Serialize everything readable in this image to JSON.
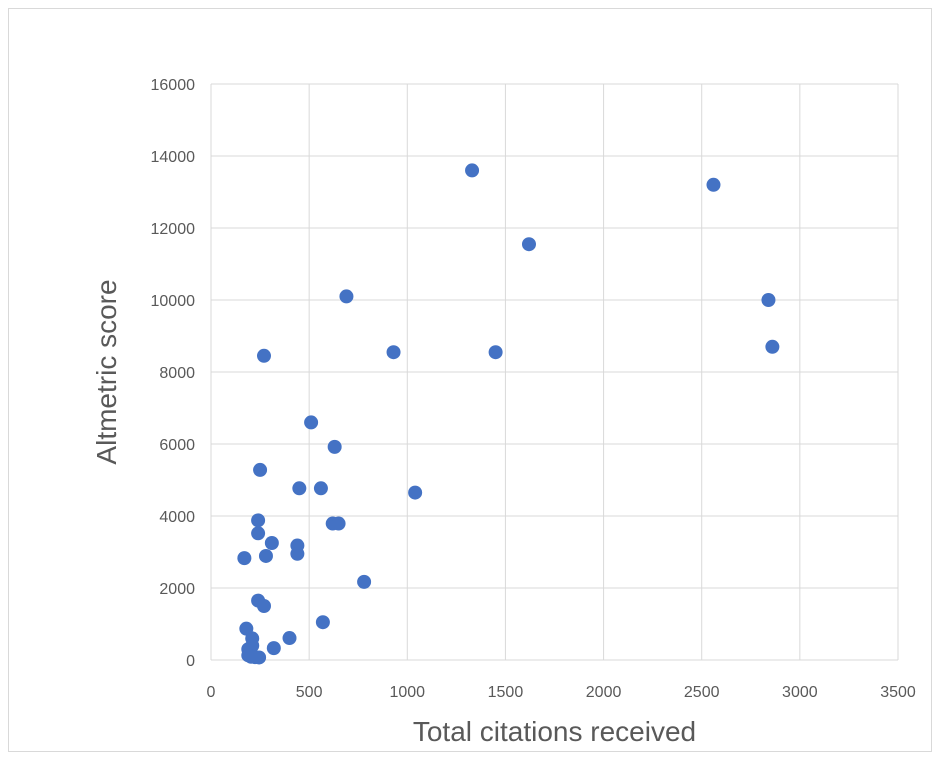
{
  "chart_data": {
    "type": "scatter",
    "title": "",
    "xlabel": "Total citations received",
    "ylabel": "Altmetric score",
    "xlim": [
      0,
      3500
    ],
    "ylim": [
      0,
      16000
    ],
    "xticks": [
      0,
      500,
      1000,
      1500,
      2000,
      2500,
      3000,
      3500
    ],
    "yticks": [
      0,
      2000,
      4000,
      6000,
      8000,
      10000,
      12000,
      14000,
      16000
    ],
    "grid": true,
    "legend": "none",
    "marker_color": "#4472C4",
    "series": [
      {
        "points": [
          {
            "x": 1330,
            "y": 13600
          },
          {
            "x": 2560,
            "y": 13200
          },
          {
            "x": 1620,
            "y": 11550
          },
          {
            "x": 690,
            "y": 10100
          },
          {
            "x": 2840,
            "y": 10000
          },
          {
            "x": 2860,
            "y": 8700
          },
          {
            "x": 930,
            "y": 8550
          },
          {
            "x": 1450,
            "y": 8550
          },
          {
            "x": 270,
            "y": 8450
          },
          {
            "x": 510,
            "y": 6600
          },
          {
            "x": 630,
            "y": 5920
          },
          {
            "x": 250,
            "y": 5280
          },
          {
            "x": 450,
            "y": 4770
          },
          {
            "x": 560,
            "y": 4770
          },
          {
            "x": 1040,
            "y": 4650
          },
          {
            "x": 240,
            "y": 3880
          },
          {
            "x": 620,
            "y": 3790
          },
          {
            "x": 650,
            "y": 3790
          },
          {
            "x": 240,
            "y": 3520
          },
          {
            "x": 310,
            "y": 3250
          },
          {
            "x": 440,
            "y": 3180
          },
          {
            "x": 440,
            "y": 2950
          },
          {
            "x": 280,
            "y": 2890
          },
          {
            "x": 170,
            "y": 2830
          },
          {
            "x": 780,
            "y": 2170
          },
          {
            "x": 240,
            "y": 1650
          },
          {
            "x": 270,
            "y": 1500
          },
          {
            "x": 570,
            "y": 1050
          },
          {
            "x": 180,
            "y": 870
          },
          {
            "x": 400,
            "y": 610
          },
          {
            "x": 210,
            "y": 600
          },
          {
            "x": 210,
            "y": 400
          },
          {
            "x": 320,
            "y": 330
          },
          {
            "x": 190,
            "y": 300
          },
          {
            "x": 190,
            "y": 130
          },
          {
            "x": 205,
            "y": 90
          },
          {
            "x": 225,
            "y": 80
          },
          {
            "x": 245,
            "y": 70
          }
        ]
      }
    ]
  }
}
